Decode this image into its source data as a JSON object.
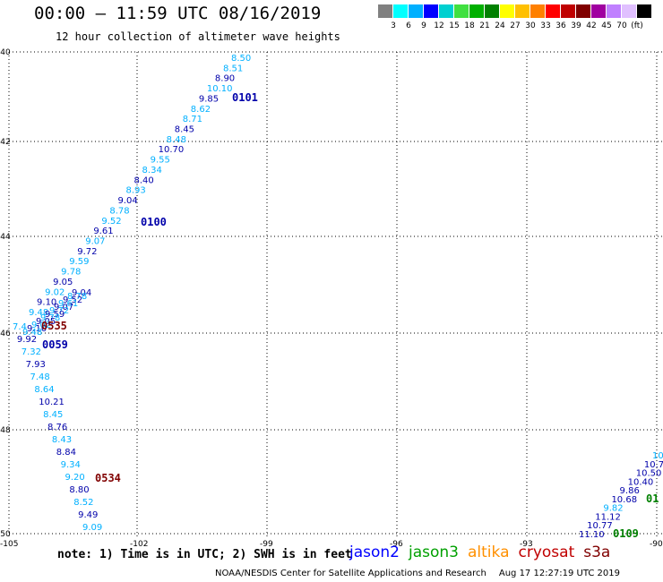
{
  "header": {
    "title": "00:00 – 11:59 UTC 08/16/2019",
    "subtitle": "12 hour collection of altimeter wave heights"
  },
  "scale": {
    "colors": [
      "#808080",
      "#00ffff",
      "#00b0ff",
      "#0000ff",
      "#00d0d0",
      "#40e040",
      "#00b000",
      "#008000",
      "#ffff00",
      "#ffc000",
      "#ff8000",
      "#ff0000",
      "#c00000",
      "#800000",
      "#a000a0",
      "#c080ff",
      "#e0c0ff",
      "#000000"
    ],
    "labels": [
      "3",
      "6",
      "9",
      "12",
      "15",
      "18",
      "21",
      "24",
      "27",
      "30",
      "33",
      "36",
      "39",
      "42",
      "45",
      "70",
      "(ft)"
    ]
  },
  "axes": {
    "lat_labels": [
      "-40",
      "-42",
      "-44",
      "-46",
      "-48",
      "-50"
    ],
    "lon_labels": [
      "-105",
      "-102",
      "-99",
      "-96",
      "-93",
      "-90"
    ]
  },
  "track_labels": [
    {
      "text": "0101",
      "color": "#0000aa"
    },
    {
      "text": "0100",
      "color": "#0000aa"
    },
    {
      "text": "0535",
      "color": "#800000"
    },
    {
      "text": "0059",
      "color": "#0000aa"
    },
    {
      "text": "0534",
      "color": "#800000"
    },
    {
      "text": "0109",
      "color": "#008000"
    },
    {
      "text": "01",
      "color": "#008000"
    }
  ],
  "track_a": [
    "8.50",
    "8.51",
    "8.90",
    "10.10",
    "9.85",
    "8.62",
    "8.71",
    "8.45",
    "8.48",
    "10.70",
    "9.55",
    "8.34",
    "8.40",
    "8.93",
    "9.04",
    "8.78",
    "9.52",
    "9.61",
    "9.07",
    "9.72",
    "9.59",
    "9.78",
    "9.05",
    "9.02",
    "9.10",
    "9.48"
  ],
  "track_b": [
    "7.4",
    "9.92",
    "7.32",
    "7.93",
    "7.48",
    "8.64",
    "10.21",
    "8.45",
    "8.76",
    "8.43",
    "8.84",
    "9.34",
    "9.20",
    "8.80",
    "8.52",
    "9.49",
    "9.09"
  ],
  "track_c": [
    "10",
    "10.7",
    "10.50",
    "10.40",
    "9.86",
    "10.68",
    "9.82",
    "11.12",
    "10.77",
    "11.10"
  ],
  "note": "note: 1) Time is in UTC; 2) SWH is in feet",
  "legend": [
    {
      "text": "jason2",
      "color": "#0000ff"
    },
    {
      "text": "jason3",
      "color": "#00a000"
    },
    {
      "text": "altika",
      "color": "#ff9000"
    },
    {
      "text": "cryosat",
      "color": "#c00000"
    },
    {
      "text": "s3a",
      "color": "#800000"
    }
  ],
  "footer": {
    "credit": "NOAA/NESDIS Center for Satellite Applications and Research",
    "timestamp": "Aug 17 12:27:19 UTC 2019"
  }
}
